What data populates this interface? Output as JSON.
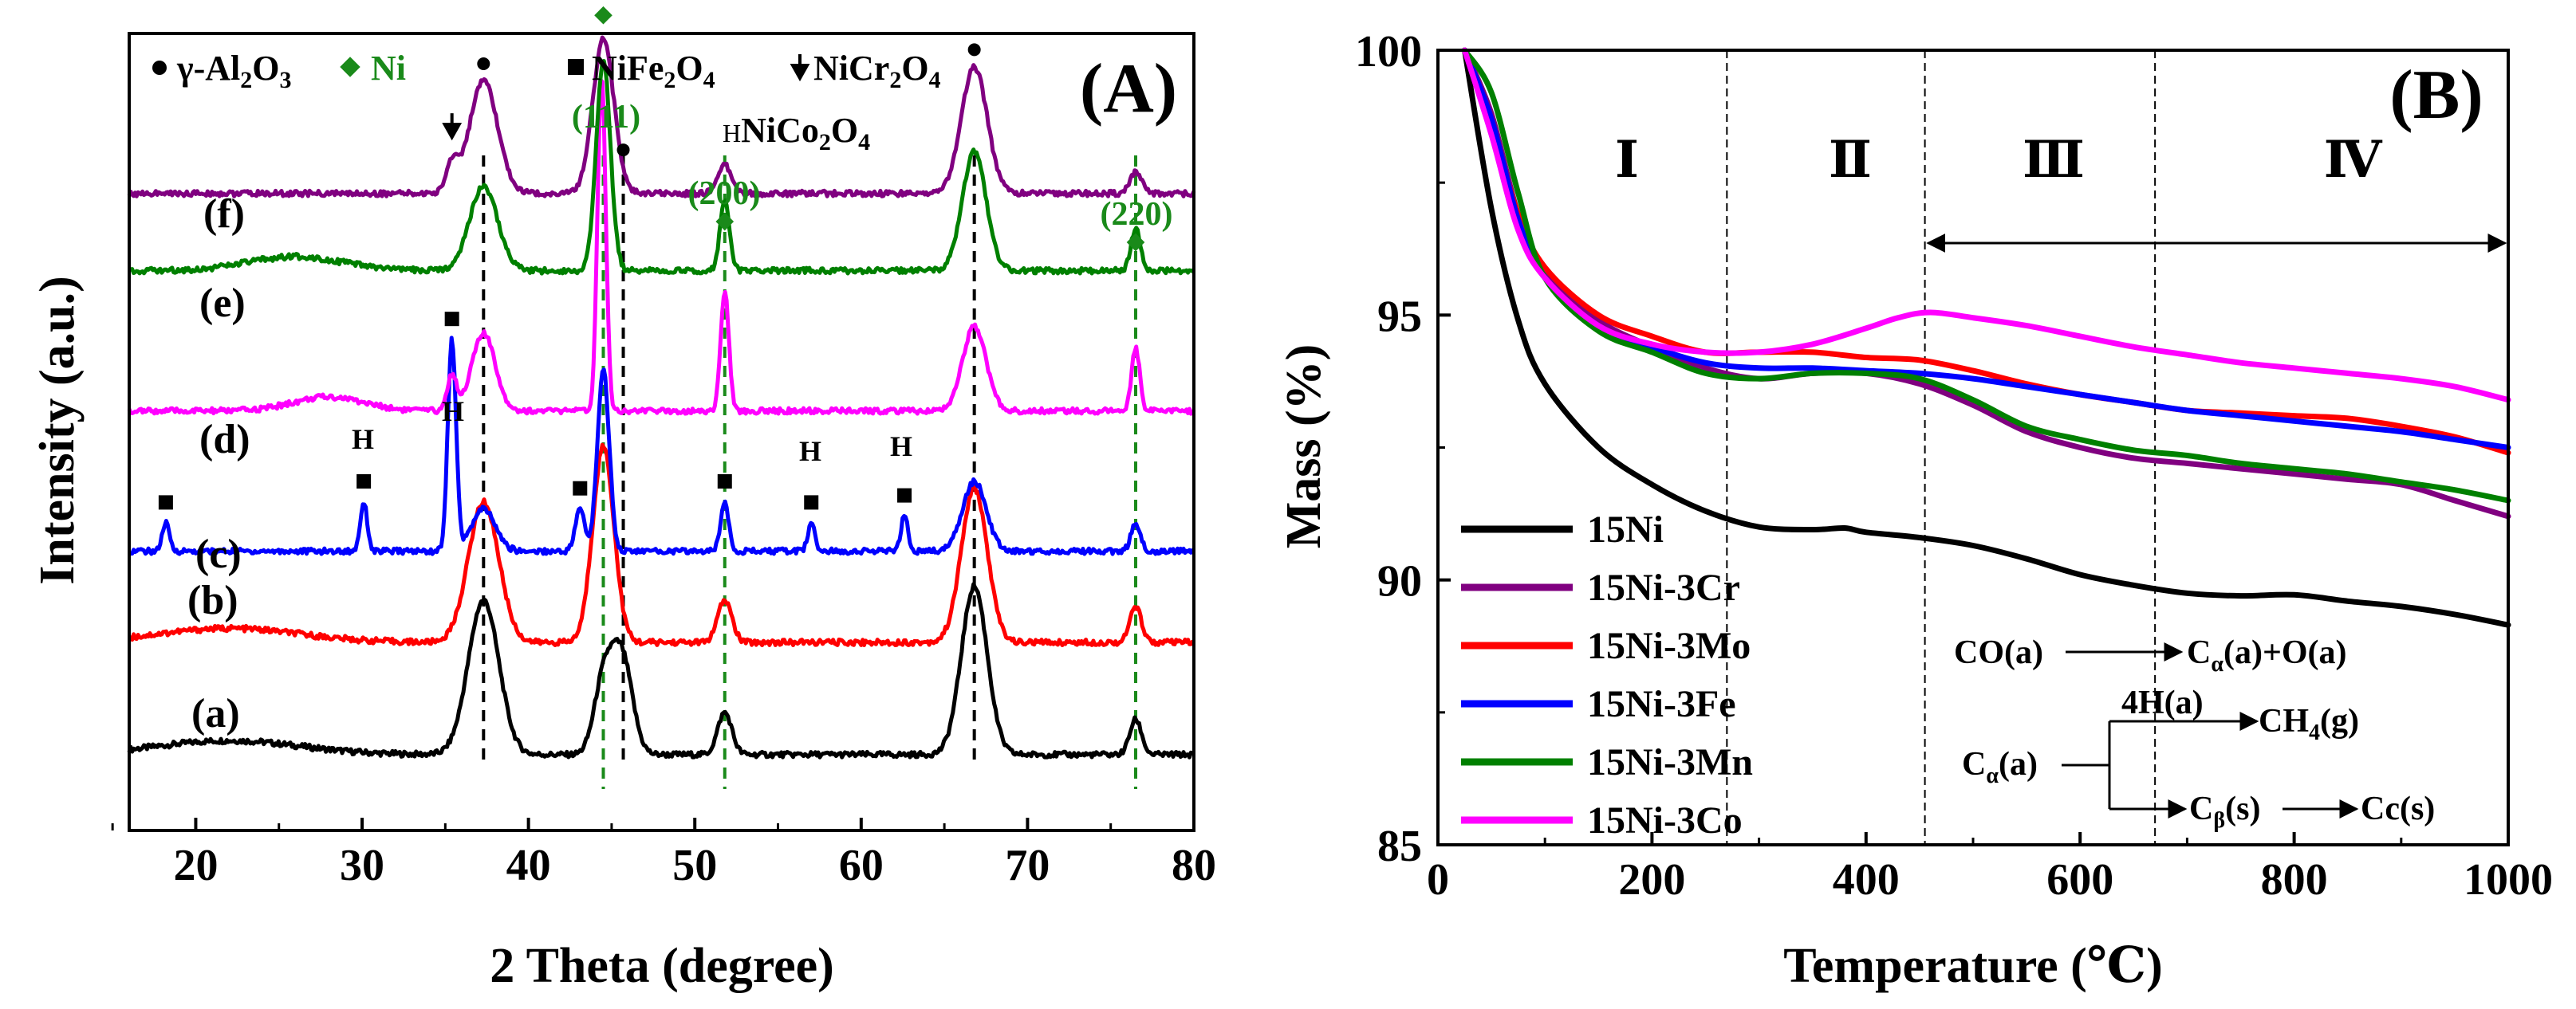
{
  "chart_data": [
    {
      "panel": "(A)",
      "type": "line",
      "xlabel": "2 Theta (degree)",
      "ylabel": "Intensity (a.u.)",
      "xlim": [
        16,
        80
      ],
      "xticks": [
        20,
        30,
        40,
        50,
        60,
        70,
        80
      ],
      "legend": {
        "al2o3": "γ-Al",
        "al2o3_sub": "2",
        "al2o3_tail": "O",
        "al2o3_sub2": "3",
        "ni": "Ni",
        "nife": "NiFe",
        "nife_sub": "2",
        "nife_tail": "O",
        "nife_sub2": "4",
        "nicr": "NiCr",
        "nicr_sub": "2",
        "nicr_tail": "O",
        "nicr_sub2": "4",
        "nico_mark": "H",
        "nico": "NiCo",
        "nico_sub": "2",
        "nico_tail": "O",
        "nico_sub2": "4"
      },
      "hkl_labels": [
        "(111)",
        "(200)",
        "(220)"
      ],
      "sample_labels": [
        "(a)",
        "(b)",
        "(c)",
        "(d)",
        "(e)",
        "(f)"
      ],
      "h_label": "H",
      "reference_lines": {
        "al2o3_black_dashed": [
          37.3,
          45.7,
          66.8
        ],
        "ni_green_dashed": [
          44.5,
          51.8,
          76.5
        ]
      },
      "series": [
        {
          "name": "(a)",
          "color": "#000000",
          "baseline": 0.04,
          "peaks": [
            [
              37.3,
              0.22,
              1.3
            ],
            [
              45.6,
              0.14,
              0.9
            ],
            [
              44.5,
              0.1,
              0.8
            ],
            [
              51.8,
              0.06,
              0.6
            ],
            [
              66.8,
              0.24,
              1.1
            ],
            [
              76.5,
              0.05,
              0.5
            ],
            [
              22,
              0.02,
              6
            ]
          ]
        },
        {
          "name": "(b)",
          "color": "#ff0000",
          "baseline": 0.2,
          "peaks": [
            [
              37.3,
              0.2,
              1.3
            ],
            [
              44.5,
              0.28,
              0.9
            ],
            [
              51.8,
              0.06,
              0.6
            ],
            [
              66.8,
              0.22,
              1.1
            ],
            [
              76.5,
              0.05,
              0.5
            ],
            [
              22,
              0.02,
              6
            ]
          ]
        },
        {
          "name": "(c)",
          "color": "#0000ff",
          "baseline": 0.33,
          "peaks": [
            [
              18.2,
              0.04,
              0.3
            ],
            [
              30.1,
              0.07,
              0.3
            ],
            [
              35.4,
              0.3,
              0.35
            ],
            [
              37.3,
              0.06,
              1.0
            ],
            [
              43.1,
              0.06,
              0.4
            ],
            [
              44.5,
              0.26,
              0.5
            ],
            [
              51.8,
              0.07,
              0.35
            ],
            [
              57.0,
              0.04,
              0.3
            ],
            [
              62.6,
              0.05,
              0.3
            ],
            [
              66.8,
              0.1,
              1.0
            ],
            [
              76.5,
              0.04,
              0.4
            ]
          ]
        },
        {
          "name": "(d)",
          "color": "#ff00ff",
          "baseline": 0.53,
          "peaks": [
            [
              35.4,
              0.05,
              0.4
            ],
            [
              37.3,
              0.11,
              1.0
            ],
            [
              44.4,
              0.48,
              0.35
            ],
            [
              51.8,
              0.17,
              0.35
            ],
            [
              66.8,
              0.12,
              1.0
            ],
            [
              76.5,
              0.09,
              0.35
            ],
            [
              28,
              0.02,
              3
            ]
          ]
        },
        {
          "name": "(e)",
          "color": "#008000",
          "baseline": 0.73,
          "peaks": [
            [
              37.3,
              0.12,
              1.2
            ],
            [
              44.5,
              0.3,
              0.6
            ],
            [
              51.8,
              0.1,
              0.4
            ],
            [
              66.8,
              0.17,
              1.0
            ],
            [
              76.5,
              0.06,
              0.4
            ],
            [
              26,
              0.02,
              4
            ]
          ]
        },
        {
          "name": "(f)",
          "color": "#800080",
          "baseline": 0.84,
          "peaks": [
            [
              35.4,
              0.04,
              0.5
            ],
            [
              37.3,
              0.16,
              1.2
            ],
            [
              44.5,
              0.22,
              0.9
            ],
            [
              51.8,
              0.04,
              0.6
            ],
            [
              66.8,
              0.18,
              1.1
            ],
            [
              76.5,
              0.03,
              0.5
            ]
          ]
        }
      ]
    },
    {
      "panel": "(B)",
      "type": "line",
      "xlabel": "Temperature (℃)",
      "ylabel": "Mass (%)",
      "xlim": [
        0,
        1000
      ],
      "ylim": [
        85,
        100
      ],
      "xticks": [
        0,
        200,
        400,
        600,
        800,
        1000
      ],
      "yticks": [
        85,
        90,
        95,
        100
      ],
      "regions": [
        "Ⅰ",
        "Ⅱ",
        "Ⅲ",
        "Ⅳ"
      ],
      "region_boundaries": [
        270,
        455,
        670
      ],
      "arrow_range": [
        455,
        1000
      ],
      "mechanism": {
        "line1_left": "CO(a)",
        "line1_right": "C",
        "line1_sub": "α",
        "line1_tail": "(a)+O(a)",
        "h_label": "4H(a)",
        "ch4": "CH",
        "ch4_sub": "4",
        "ch4_tail": "(g)",
        "ca": "C",
        "ca_sub": "α",
        "ca_tail": "(a)",
        "cb": "C",
        "cb_sub": "β",
        "cb_tail": "(s)",
        "cc": "Cc(s)"
      },
      "series": [
        {
          "name": "15Ni",
          "color": "#000000",
          "x": [
            25,
            50,
            75,
            100,
            150,
            200,
            250,
            300,
            350,
            380,
            400,
            450,
            500,
            550,
            600,
            650,
            700,
            750,
            800,
            850,
            900,
            950,
            1000
          ],
          "y": [
            100,
            97.0,
            94.9,
            93.7,
            92.5,
            91.8,
            91.3,
            91.0,
            90.95,
            90.98,
            90.9,
            90.8,
            90.65,
            90.4,
            90.1,
            89.9,
            89.75,
            89.7,
            89.72,
            89.6,
            89.5,
            89.35,
            89.15
          ]
        },
        {
          "name": "15Ni-3Cr",
          "color": "#800080",
          "x": [
            25,
            50,
            75,
            100,
            150,
            200,
            250,
            300,
            350,
            400,
            450,
            500,
            550,
            600,
            650,
            700,
            750,
            800,
            850,
            900,
            950,
            1000
          ],
          "y": [
            100,
            98.8,
            96.9,
            95.8,
            94.9,
            94.4,
            94.0,
            93.8,
            93.9,
            93.9,
            93.7,
            93.3,
            92.8,
            92.5,
            92.3,
            92.2,
            92.1,
            92.0,
            91.9,
            91.8,
            91.5,
            91.2
          ]
        },
        {
          "name": "15Ni-3Mo",
          "color": "#ff0000",
          "x": [
            25,
            50,
            75,
            100,
            150,
            200,
            250,
            300,
            350,
            400,
            450,
            500,
            550,
            600,
            650,
            700,
            750,
            800,
            850,
            900,
            950,
            1000
          ],
          "y": [
            100,
            98.6,
            96.9,
            95.9,
            95.0,
            94.6,
            94.3,
            94.3,
            94.3,
            94.2,
            94.15,
            93.95,
            93.7,
            93.5,
            93.35,
            93.2,
            93.15,
            93.1,
            93.05,
            92.9,
            92.7,
            92.4
          ]
        },
        {
          "name": "15Ni-3Fe",
          "color": "#0000ff",
          "x": [
            25,
            50,
            75,
            100,
            150,
            200,
            250,
            300,
            350,
            400,
            450,
            500,
            550,
            600,
            650,
            700,
            750,
            800,
            850,
            900,
            950,
            1000
          ],
          "y": [
            100,
            98.7,
            96.8,
            95.7,
            94.8,
            94.4,
            94.1,
            94.0,
            94.0,
            93.95,
            93.9,
            93.8,
            93.65,
            93.5,
            93.35,
            93.2,
            93.1,
            93.0,
            92.9,
            92.8,
            92.65,
            92.5
          ]
        },
        {
          "name": "15Ni-3Mn",
          "color": "#008000",
          "x": [
            25,
            50,
            75,
            100,
            150,
            200,
            250,
            300,
            350,
            400,
            450,
            500,
            550,
            600,
            650,
            700,
            750,
            800,
            850,
            900,
            950,
            1000
          ],
          "y": [
            100,
            99.2,
            97.3,
            95.7,
            94.7,
            94.3,
            93.9,
            93.8,
            93.9,
            93.9,
            93.8,
            93.4,
            92.9,
            92.65,
            92.45,
            92.35,
            92.2,
            92.1,
            92.0,
            91.85,
            91.7,
            91.5
          ]
        },
        {
          "name": "15Ni-3Co",
          "color": "#ff00ff",
          "x": [
            25,
            50,
            75,
            100,
            150,
            200,
            250,
            300,
            350,
            400,
            430,
            460,
            500,
            550,
            600,
            650,
            700,
            750,
            800,
            850,
            900,
            950,
            1000
          ],
          "y": [
            100,
            98.4,
            96.6,
            95.7,
            94.8,
            94.45,
            94.3,
            94.3,
            94.45,
            94.75,
            94.95,
            95.05,
            94.95,
            94.8,
            94.6,
            94.4,
            94.25,
            94.1,
            94.0,
            93.9,
            93.8,
            93.65,
            93.4
          ]
        }
      ]
    }
  ]
}
